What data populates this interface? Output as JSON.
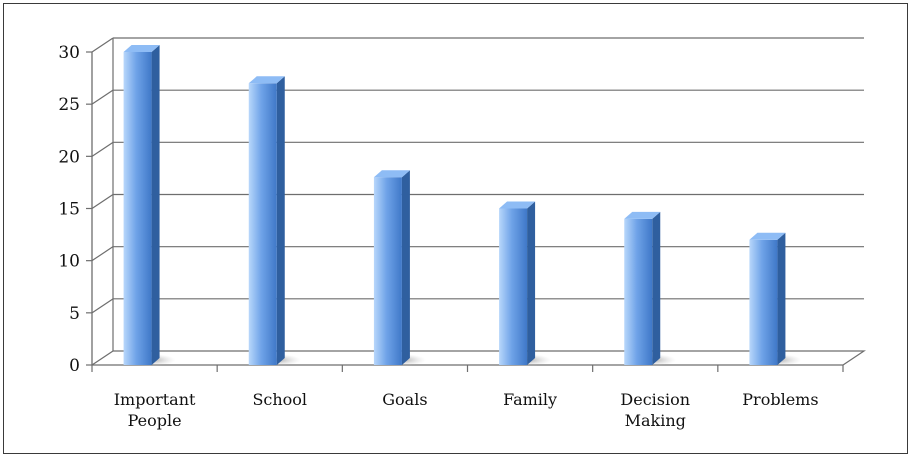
{
  "chart_data": {
    "type": "bar",
    "categories": [
      "Important People",
      "School",
      "Goals",
      "Family",
      "Decision Making",
      "Problems"
    ],
    "category_lines": [
      [
        "Important",
        "People"
      ],
      [
        "School"
      ],
      [
        "Goals"
      ],
      [
        "Family"
      ],
      [
        "Decision",
        "Making"
      ],
      [
        "Problems"
      ]
    ],
    "values": [
      30,
      27,
      18,
      15,
      14,
      12
    ],
    "ylim": [
      0,
      30
    ],
    "yticks": [
      0,
      5,
      10,
      15,
      20,
      25,
      30
    ],
    "grid": true,
    "legend": "none",
    "colors": {
      "bar_light": "#b8d7fb",
      "bar_mid": "#6fa3e8",
      "bar_dark": "#3f78c8",
      "bar_side": "#2f5f9f",
      "bar_top": "#8ebcf5",
      "grid": "#6e6e6e",
      "axis": "#6e6e6e"
    }
  }
}
